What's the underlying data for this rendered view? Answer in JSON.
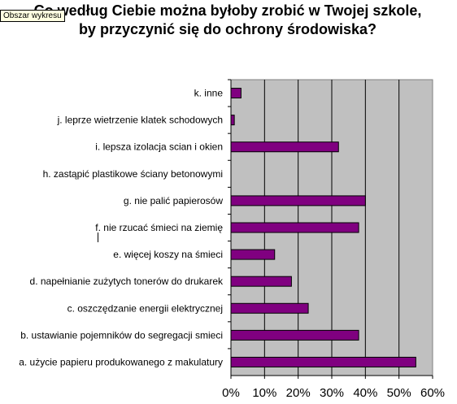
{
  "tooltip": "Obszar wykresu",
  "chart_data": {
    "type": "bar",
    "orientation": "horizontal",
    "title": "Co według Ciebie można byłoby zrobić w Twojej szkole, by przyczynić się do ochrony środowiska?",
    "categories": [
      "k. inne",
      "j. leprze wietrzenie klatek schodowych",
      "i. lepsza izolacja scian i okien",
      "h. zastąpić plastikowe ściany betonowymi",
      "g. nie palić papierosów",
      "f. nie rzucać śmieci na ziemię",
      "e. więcej koszy na śmieci",
      "d. napełnianie zużytych tonerów do drukarek",
      "c. oszczędzanie energii elektrycznej",
      "b. ustawianie pojemników do segregacji smieci",
      "a. użycie papieru produkowanego z makulatury"
    ],
    "values": [
      3,
      1,
      32,
      0,
      40,
      38,
      13,
      18,
      23,
      38,
      55
    ],
    "xlim": [
      0,
      60
    ],
    "xticks": [
      "0%",
      "10%",
      "20%",
      "30%",
      "40%",
      "50%",
      "60%"
    ],
    "bar_color": "#800080",
    "plot_background": "#c0c0c0",
    "grid": true
  }
}
